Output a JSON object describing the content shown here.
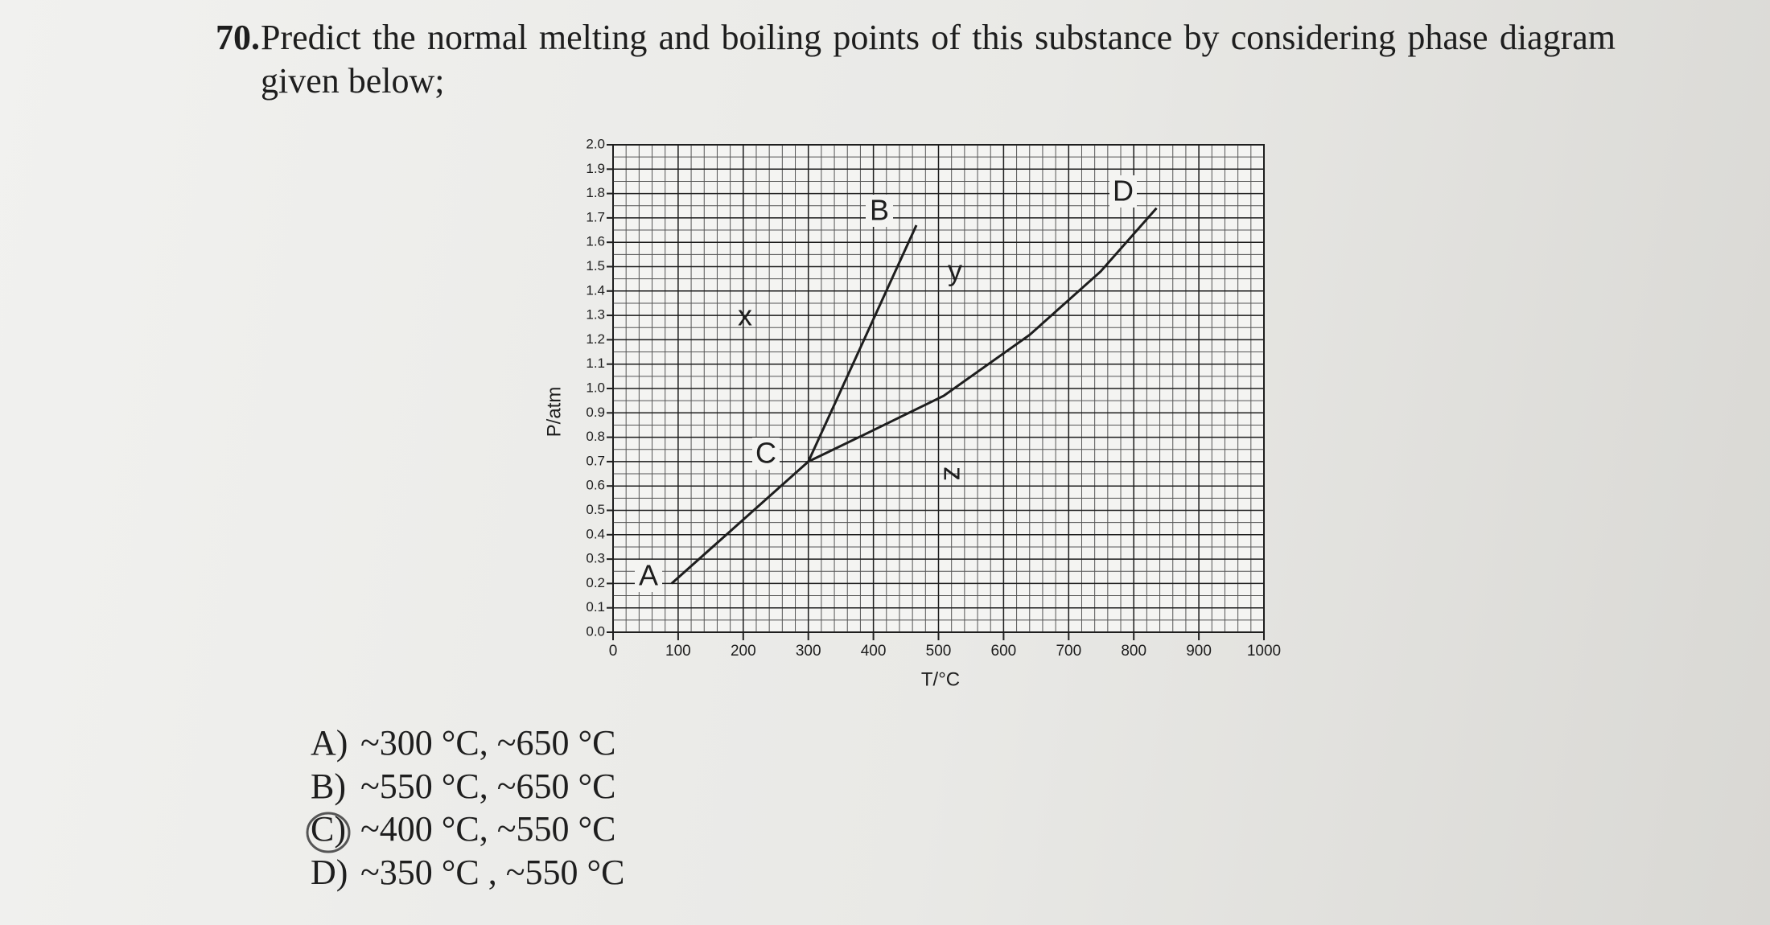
{
  "question": {
    "number": "70.",
    "text": "Predict the normal melting and boiling points of this substance by considering phase diagram given below;"
  },
  "diagram": {
    "type": "line",
    "xlabel": "T/°C",
    "ylabel": "P/atm",
    "xlim": [
      0,
      1000
    ],
    "ylim": [
      0,
      2
    ],
    "xticks": [
      0,
      100,
      200,
      300,
      400,
      500,
      600,
      700,
      800,
      900,
      1000
    ],
    "yticks": [
      {
        "value": 0,
        "label": "0.0"
      },
      0.1,
      0.2,
      0.3,
      0.4,
      0.5,
      0.6,
      0.7,
      0.8,
      0.9,
      {
        "value": 1,
        "label": "1.0"
      },
      1.1,
      1.2,
      1.3,
      1.4,
      1.5,
      1.6,
      1.7,
      1.8,
      1.9,
      {
        "value": 2,
        "label": "2.0"
      }
    ],
    "grid": true,
    "color": "#1e1e1e",
    "curves": [
      {
        "x": [
          90,
          300
        ],
        "y": [
          0.2,
          0.7
        ]
      },
      {
        "x": [
          300,
          466
        ],
        "y": [
          0.7,
          1.67
        ]
      },
      {
        "x": [
          300,
          393,
          508,
          640,
          749,
          835
        ],
        "y": [
          0.7,
          0.82,
          0.97,
          1.22,
          1.48,
          1.74
        ]
      }
    ],
    "region_labels": [
      "A",
      "B",
      "C",
      "D",
      "x",
      "y",
      "z"
    ]
  },
  "options": [
    {
      "letter": "A)",
      "text": "~300 °C, ~650 °C"
    },
    {
      "letter": "B)",
      "text": "~550 °C, ~650 °C"
    },
    {
      "letter": "C)",
      "text": "~400 °C, ~550 °C"
    },
    {
      "letter": "D)",
      "text": "~350 °C , ~550 °C"
    }
  ]
}
